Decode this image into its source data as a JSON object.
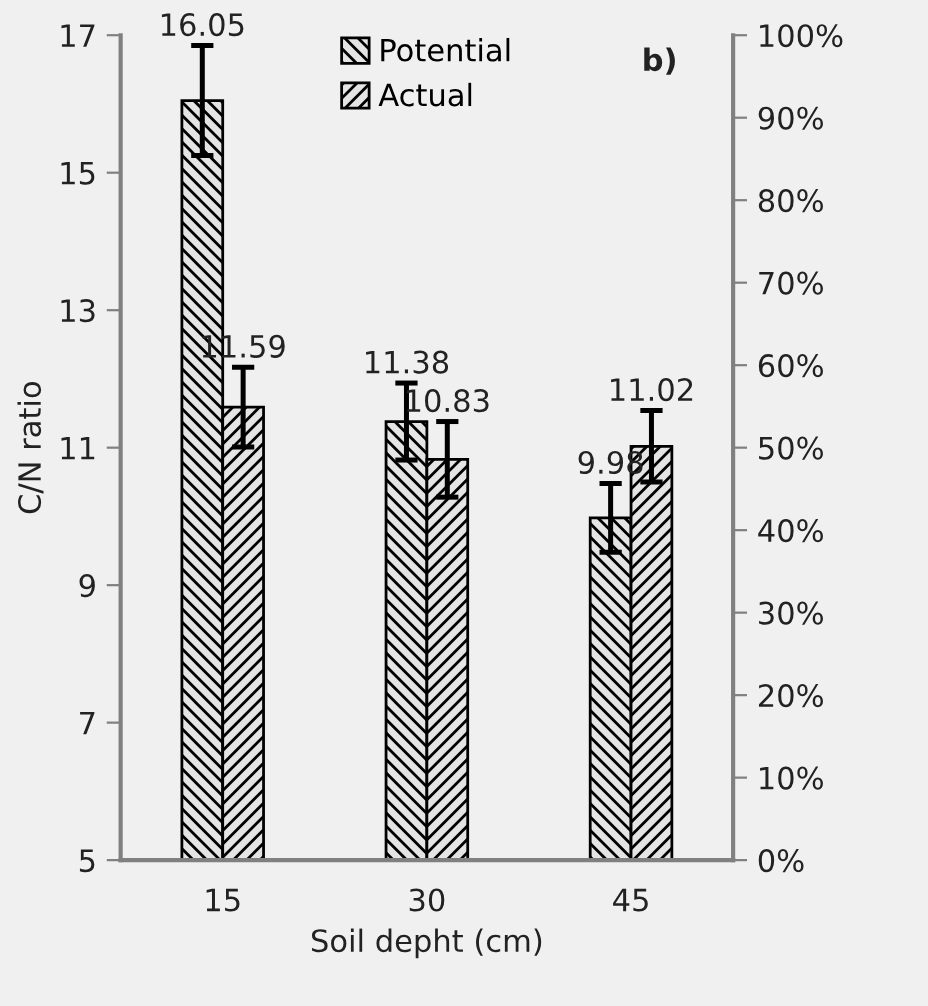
{
  "chart_data": {
    "type": "bar",
    "xlabel": "Soil depht (cm)",
    "ylabel": "C/N ratio",
    "categories": [
      "15",
      "30",
      "45"
    ],
    "series": [
      {
        "name": "Potential",
        "color": "#000000",
        "values": [
          16.05,
          11.38,
          9.98
        ],
        "errors": [
          0.8,
          0.56,
          0.5
        ]
      },
      {
        "name": "Actual",
        "color": "#000000",
        "values": [
          11.59,
          10.83,
          11.02
        ],
        "errors": [
          0.58,
          0.55,
          0.52
        ]
      }
    ],
    "ylim": [
      5,
      17
    ],
    "yticks": [
      5,
      7,
      9,
      11,
      13,
      15,
      17
    ],
    "y2lim": [
      0,
      100
    ],
    "y2ticks": [
      {
        "value": 0,
        "label": "0%"
      },
      {
        "value": 10,
        "label": "10%"
      },
      {
        "value": 20,
        "label": "20%"
      },
      {
        "value": 30,
        "label": "30%"
      },
      {
        "value": 40,
        "label": "40%"
      },
      {
        "value": 50,
        "label": "50%"
      },
      {
        "value": 60,
        "label": "60%"
      },
      {
        "value": 70,
        "label": "70%"
      },
      {
        "value": 80,
        "label": "80%"
      },
      {
        "value": 90,
        "label": "90%"
      },
      {
        "value": 100,
        "label": "100%"
      }
    ],
    "annotations": [
      "b)"
    ],
    "data_labels": true,
    "legend": "top",
    "grid": false
  }
}
